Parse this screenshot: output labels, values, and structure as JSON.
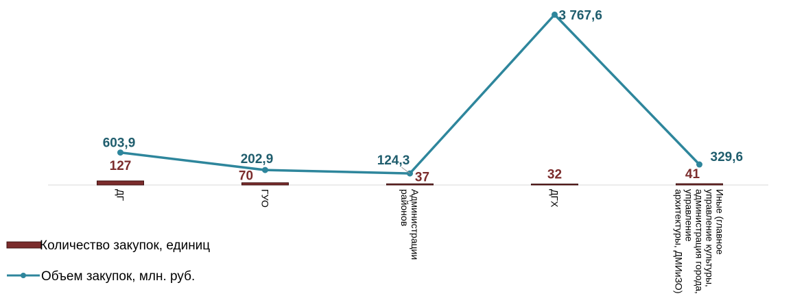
{
  "chart_data": {
    "type": "bar+line",
    "title": "",
    "xlabel": "",
    "ylabel": "",
    "grid": false,
    "legend_position": "bottom-left",
    "categories": [
      [
        "ДГ"
      ],
      [
        "ГУО"
      ],
      [
        "Администрации",
        "районов"
      ],
      [
        "ДГХ"
      ],
      [
        "Иные (главное",
        "управление культуры,",
        "администрация города,",
        "управление",
        "архитектуры, ДМИиЗО)"
      ]
    ],
    "series": [
      {
        "name": "Количество закупок, единиц",
        "type": "bar",
        "color": "#7b2c2c",
        "values": [
          127,
          70,
          37,
          32,
          41
        ],
        "labels": [
          "127",
          "70",
          "37",
          "32",
          "41"
        ]
      },
      {
        "name": "Объем закупок, млн. руб.",
        "type": "line",
        "color": "#2e869c",
        "values": [
          603.9,
          202.9,
          124.3,
          3767.6,
          329.6
        ],
        "labels": [
          "603,9",
          "202,9",
          "124,3",
          "3 767,6",
          "329,6"
        ]
      }
    ]
  }
}
